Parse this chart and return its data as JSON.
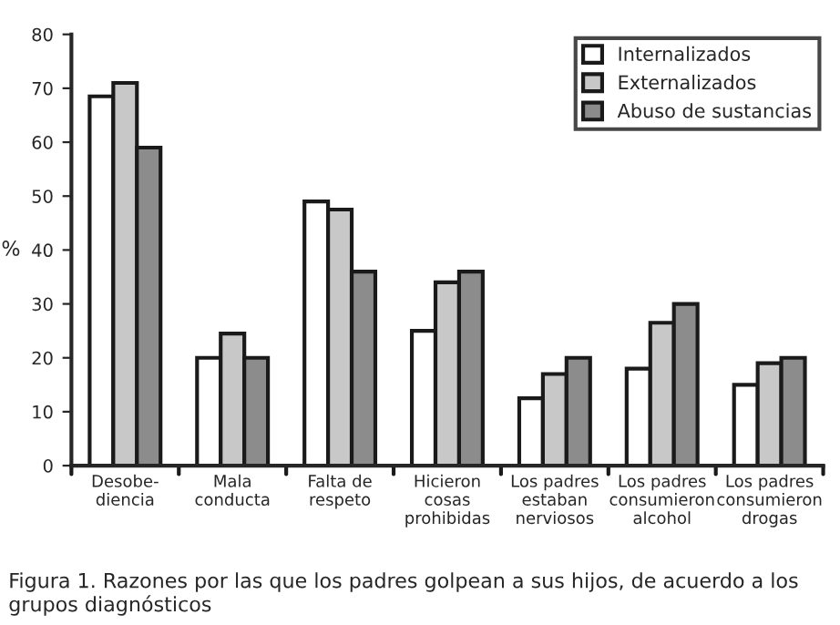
{
  "chart_data": {
    "type": "bar",
    "categories": [
      "Desobe-\ndiencia",
      "Mala\nconducta",
      "Falta de\nrespeto",
      "Hicieron\ncosas\nprohibidas",
      "Los padres\nestaban\nnerviosos",
      "Los padres\nconsumieron\nalcohol",
      "Los padres\nconsumieron\ndrogas"
    ],
    "series": [
      {
        "name": "Internalizados",
        "color": "#ffffff",
        "values": [
          68.5,
          20,
          49,
          25,
          12.5,
          18,
          15
        ]
      },
      {
        "name": "Externalizados",
        "color": "#c8c8c8",
        "values": [
          71,
          24.5,
          47.5,
          34,
          17,
          26.5,
          19
        ]
      },
      {
        "name": "Abuso de sustancias",
        "color": "#8c8c8c",
        "values": [
          59,
          20,
          36,
          36,
          20,
          30,
          20
        ]
      }
    ],
    "ylabel": "%",
    "ylim": [
      0,
      80
    ],
    "yticks": [
      0,
      10,
      20,
      30,
      40,
      50,
      60,
      70,
      80
    ],
    "legend": "top right",
    "grid": false,
    "annotations": [
      "Figura 1. Razones por las que los padres golpean a sus hijos, de acuerdo a los grupos diagnósticos"
    ]
  }
}
